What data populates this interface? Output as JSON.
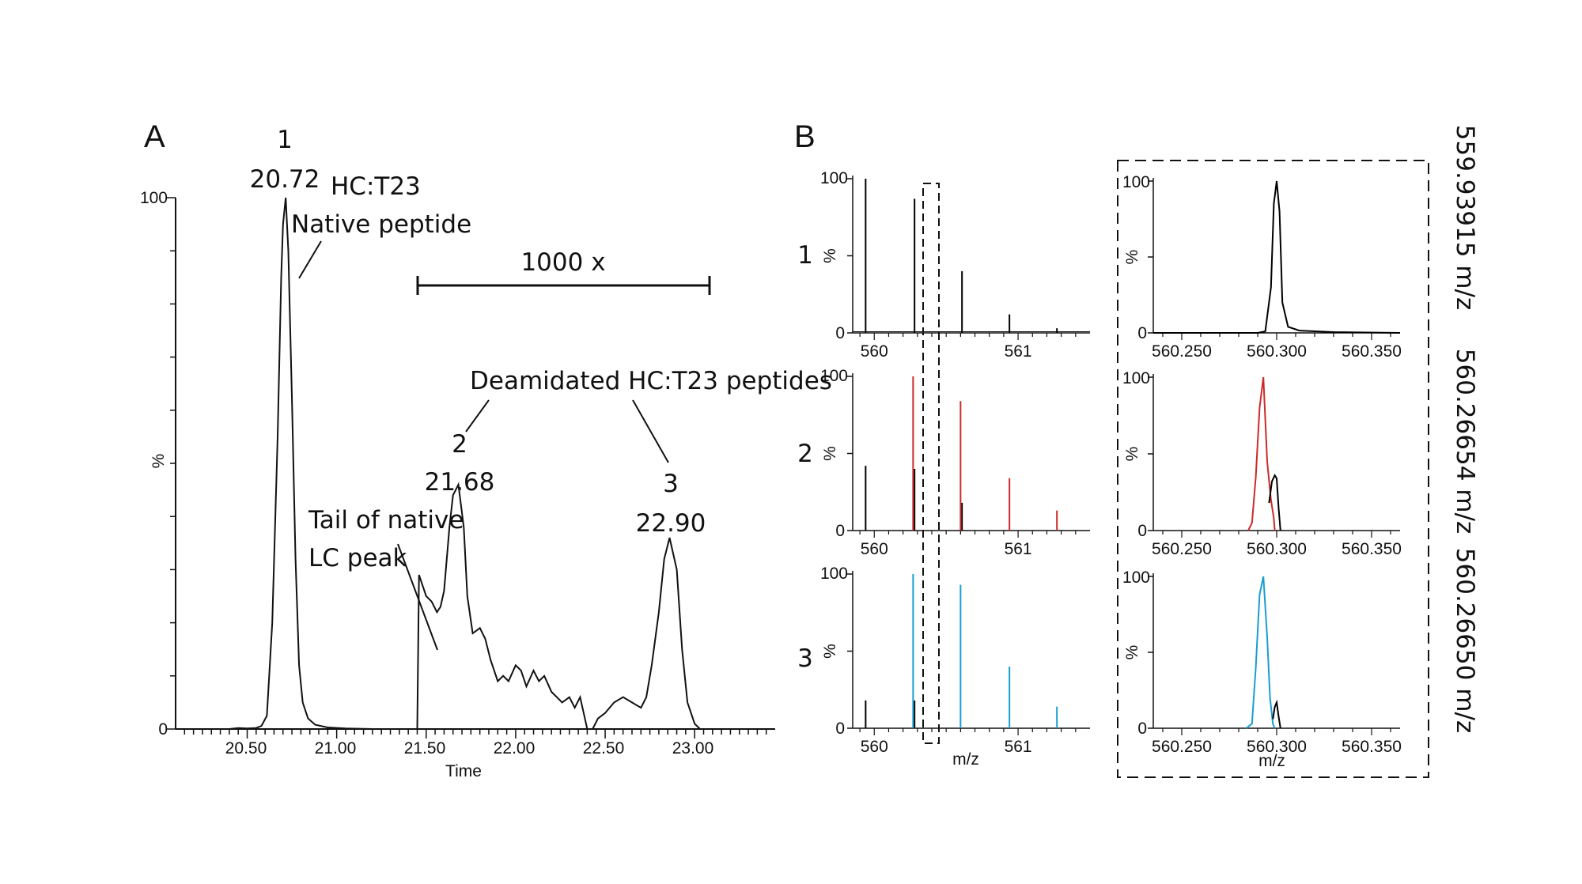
{
  "panel_labels": {
    "a": "A",
    "b": "B"
  },
  "chart_data": [
    {
      "id": "A",
      "type": "line",
      "xlabel": "Time",
      "ylabel": "%",
      "xlim": [
        20.1,
        23.45
      ],
      "ylim": [
        0,
        100
      ],
      "x_ticks": [
        "20.50",
        "21.00",
        "21.50",
        "22.00",
        "22.50",
        "23.00"
      ],
      "y_ticks": [
        "0",
        "100"
      ],
      "series": [
        {
          "x": [
            20.1,
            20.2,
            20.3,
            20.4,
            20.45,
            20.5,
            20.55,
            20.58,
            20.61,
            20.64,
            20.67,
            20.69,
            20.7,
            20.715,
            20.73,
            20.75,
            20.77,
            20.79,
            20.81,
            20.84,
            20.88,
            20.95,
            21.05,
            21.2,
            21.3,
            21.4,
            21.445
          ],
          "y": [
            0,
            0,
            0,
            0,
            0.2,
            0.1,
            0.2,
            0.6,
            2.5,
            20,
            55,
            85,
            95,
            100,
            90,
            62,
            32,
            12,
            5,
            2,
            0.8,
            0.3,
            0.1,
            0,
            0,
            0,
            0
          ]
        },
        {
          "x": [
            21.45,
            21.46,
            21.5,
            21.53,
            21.56,
            21.58,
            21.6,
            21.63,
            21.65,
            21.68,
            21.71,
            21.73,
            21.76,
            21.8,
            21.83,
            21.86,
            21.9,
            21.93,
            21.96,
            22.0,
            22.03,
            22.06,
            22.1,
            22.13,
            22.16,
            22.2,
            22.23,
            22.26,
            22.3,
            22.33,
            22.36,
            22.38,
            22.4,
            22.43,
            22.46,
            22.5,
            22.55,
            22.6,
            22.65,
            22.7,
            22.73,
            22.76,
            22.8,
            22.83,
            22.86,
            22.9,
            22.93,
            22.96,
            23.0,
            23.03,
            23.06,
            23.1
          ],
          "y": [
            0,
            29,
            25,
            24,
            22,
            23,
            26,
            38,
            44,
            46,
            38,
            25,
            18,
            19,
            17,
            13,
            9,
            10,
            9,
            12,
            11,
            8,
            11,
            9,
            10,
            7,
            6,
            5,
            6,
            4,
            6,
            3,
            0,
            0,
            2,
            3,
            5,
            6,
            5,
            4,
            6,
            12,
            22,
            32,
            36,
            30,
            15,
            5,
            1,
            0,
            0,
            0
          ]
        }
      ],
      "annotations": [
        {
          "text": "1",
          "x": 20.72
        },
        {
          "text": "20.72",
          "x": 20.72
        },
        {
          "text": "HC:T23"
        },
        {
          "text": "Native peptide"
        },
        {
          "text": "1000 x",
          "x_range": [
            21.45,
            23.1
          ]
        },
        {
          "text": "Deamidated HC:T23 peptides"
        },
        {
          "text": "2",
          "x": 21.68
        },
        {
          "text": "21.68",
          "x": 21.68
        },
        {
          "text": "Tail of native"
        },
        {
          "text": "LC peak"
        },
        {
          "text": "3",
          "x": 22.9
        },
        {
          "text": "22.90",
          "x": 22.9
        }
      ]
    },
    {
      "id": "B-full-spectra",
      "type": "bar",
      "xlabel": "m/z",
      "ylabel": "%",
      "xlim": [
        559.85,
        561.5
      ],
      "ylim": [
        0,
        100
      ],
      "x_ticks": [
        "560",
        "561"
      ],
      "y_ticks": [
        "0",
        "100"
      ],
      "rows": [
        {
          "row_label": "1",
          "series": [
            {
              "color": "#000000",
              "x": [
                559.94,
                560.28,
                560.61,
                560.94,
                561.27
              ],
              "y": [
                100,
                87,
                40,
                12,
                3
              ]
            }
          ]
        },
        {
          "row_label": "2",
          "series": [
            {
              "color": "#000000",
              "x": [
                559.94,
                560.28,
                560.61
              ],
              "y": [
                42,
                40,
                18
              ]
            },
            {
              "color": "#cc2a2a",
              "x": [
                560.27,
                560.6,
                560.94,
                561.27
              ],
              "y": [
                100,
                84,
                34,
                13
              ]
            }
          ]
        },
        {
          "row_label": "3",
          "series": [
            {
              "color": "#000000",
              "x": [
                559.94,
                560.28
              ],
              "y": [
                18,
                18
              ]
            },
            {
              "color": "#1a9ed0",
              "x": [
                560.27,
                560.6,
                560.94,
                561.27
              ],
              "y": [
                100,
                93,
                40,
                14
              ]
            }
          ]
        }
      ]
    },
    {
      "id": "B-zoomed-peaks",
      "type": "line",
      "xlabel": "m/z",
      "ylabel": "%",
      "xlim": [
        560.235,
        560.365
      ],
      "ylim": [
        0,
        100
      ],
      "x_ticks": [
        "560.250",
        "560.300",
        "560.350"
      ],
      "y_ticks": [
        "0",
        "100"
      ],
      "rows": [
        {
          "label": "559.93915 m/z",
          "series": [
            {
              "color": "#000000",
              "x": [
                560.235,
                560.29,
                560.294,
                560.297,
                560.2985,
                560.3,
                560.3015,
                560.303,
                560.306,
                560.312,
                560.33,
                560.365
              ],
              "y": [
                0,
                0,
                1,
                30,
                85,
                100,
                80,
                20,
                4,
                1.5,
                0.5,
                0
              ]
            }
          ]
        },
        {
          "label": "560.26654 m/z",
          "series": [
            {
              "color": "#cc2a2a",
              "x": [
                560.285,
                560.287,
                560.289,
                560.291,
                560.293,
                560.295,
                560.297,
                560.2985,
                560.299
              ],
              "y": [
                0,
                5,
                35,
                80,
                100,
                45,
                20,
                8,
                0
              ]
            },
            {
              "color": "#000000",
              "x": [
                560.296,
                560.2975,
                560.299,
                560.3,
                560.301,
                560.302
              ],
              "y": [
                18,
                32,
                36,
                34,
                15,
                0
              ]
            }
          ]
        },
        {
          "label": "560.26650 m/z",
          "series": [
            {
              "color": "#1a9ed0",
              "x": [
                560.284,
                560.287,
                560.289,
                560.291,
                560.293,
                560.295,
                560.2965,
                560.298,
                560.299
              ],
              "y": [
                0,
                3,
                40,
                88,
                100,
                60,
                20,
                3,
                0
              ]
            },
            {
              "color": "#000000",
              "x": [
                560.298,
                560.299,
                560.3,
                560.301,
                560.302
              ],
              "y": [
                6,
                14,
                17,
                8,
                0
              ]
            }
          ]
        }
      ]
    }
  ]
}
